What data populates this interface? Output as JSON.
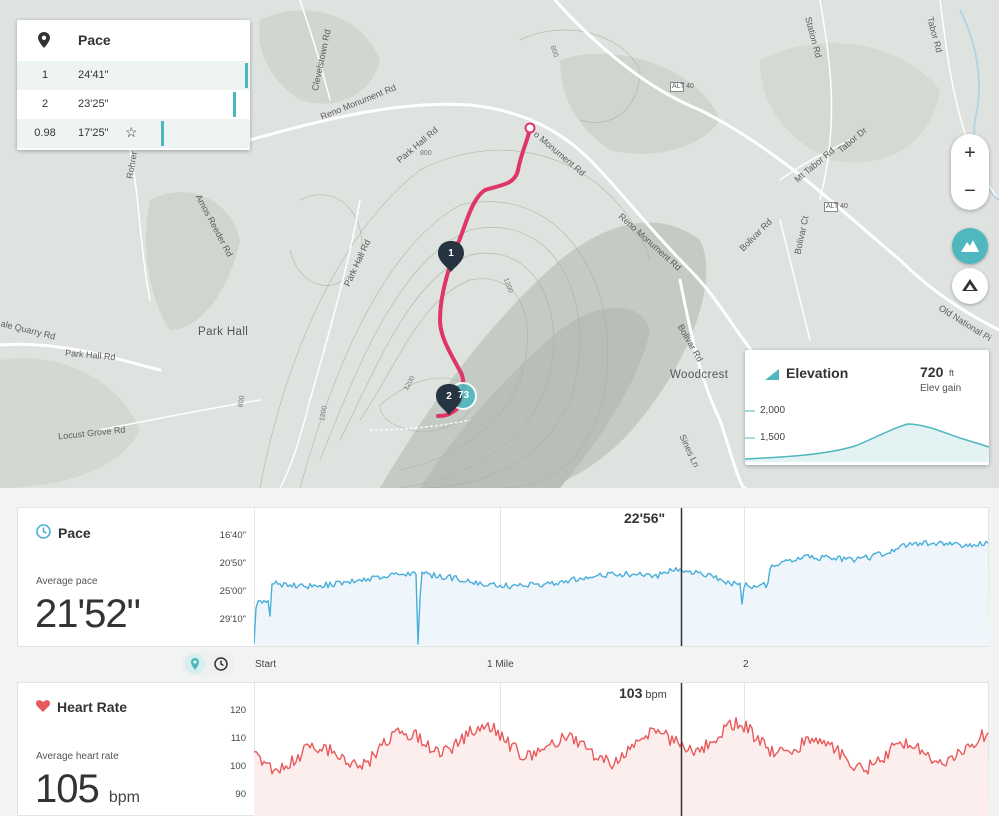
{
  "map": {
    "pace_card": {
      "title": "Pace",
      "splits": [
        {
          "num": "1",
          "time": "24'41\"",
          "bar_fraction": 1.0
        },
        {
          "num": "2",
          "time": "23'25\"",
          "bar_fraction": 0.93
        },
        {
          "num": "0.98",
          "time": "17'25\"",
          "bar_fraction": 0.51,
          "fastest": true
        }
      ]
    },
    "markers": {
      "m1": "1",
      "m2": "2",
      "m3": "73"
    },
    "labels": {
      "reno1": "Reno Monument Rd",
      "reno2": "o Monument Rd",
      "reno3": "Reno Monument Rd",
      "clevelstown": "Clevelstown Rd",
      "parkhall_rd": "Park Hall Rd",
      "parkhall_rd2": "Park Hall Rd",
      "parkhall_rd3": "Park Hall Rd",
      "amos": "Amos Reeder Rd",
      "rohrer": "Rohrer",
      "quarry": "ale Quarry Rd",
      "locust": "Locust Grove Rd",
      "parkhall_town": "Park Hall",
      "woodcrest": "Woodcrest",
      "station": "Station Rd",
      "tabor": "Tabor Rd",
      "mttabor": "Mt Tabor Rd",
      "tabordr": "Tabor Dr",
      "bolivar": "Bolivar Rd",
      "bolivar2": "Bolivar Rd",
      "bolivarct": "Bolivar Ct",
      "oldnational": "Old National Pi",
      "sinesln": "Sines Ln",
      "alt40a": "ALT 40",
      "alt40b": "ALT 40",
      "e800a": "800",
      "e800b": "800",
      "e800c": "800",
      "e1200a": "1200",
      "e1200b": "1200",
      "e1200c": "1200"
    },
    "zoom": {
      "in": "+",
      "out": "−"
    },
    "elevation_card": {
      "title": "Elevation",
      "gain": "720",
      "gain_unit": "ft",
      "gain_label": "Elev gain",
      "ticks": [
        "2,000",
        "1,500"
      ]
    }
  },
  "pace_chart": {
    "title": "Pace",
    "avg_label": "Average pace",
    "avg_value": "21'52\"",
    "cursor_value": "22'56\"",
    "y_ticks": [
      "16'40\"",
      "20'50\"",
      "25'00\"",
      "29'10\""
    ]
  },
  "x_axis": {
    "start": "Start",
    "mile1": "1 Mile",
    "mile2": "2"
  },
  "hr_chart": {
    "title": "Heart Rate",
    "avg_label": "Average heart rate",
    "avg_value": "105",
    "avg_unit": "bpm",
    "cursor_value": "103",
    "cursor_unit": "bpm",
    "y_ticks": [
      "120",
      "110",
      "100",
      "90"
    ]
  },
  "colors": {
    "accent": "#4fb8bf",
    "route": "#e0356b",
    "pace_line": "#4aaed8",
    "hr_line": "#e8595a"
  }
}
